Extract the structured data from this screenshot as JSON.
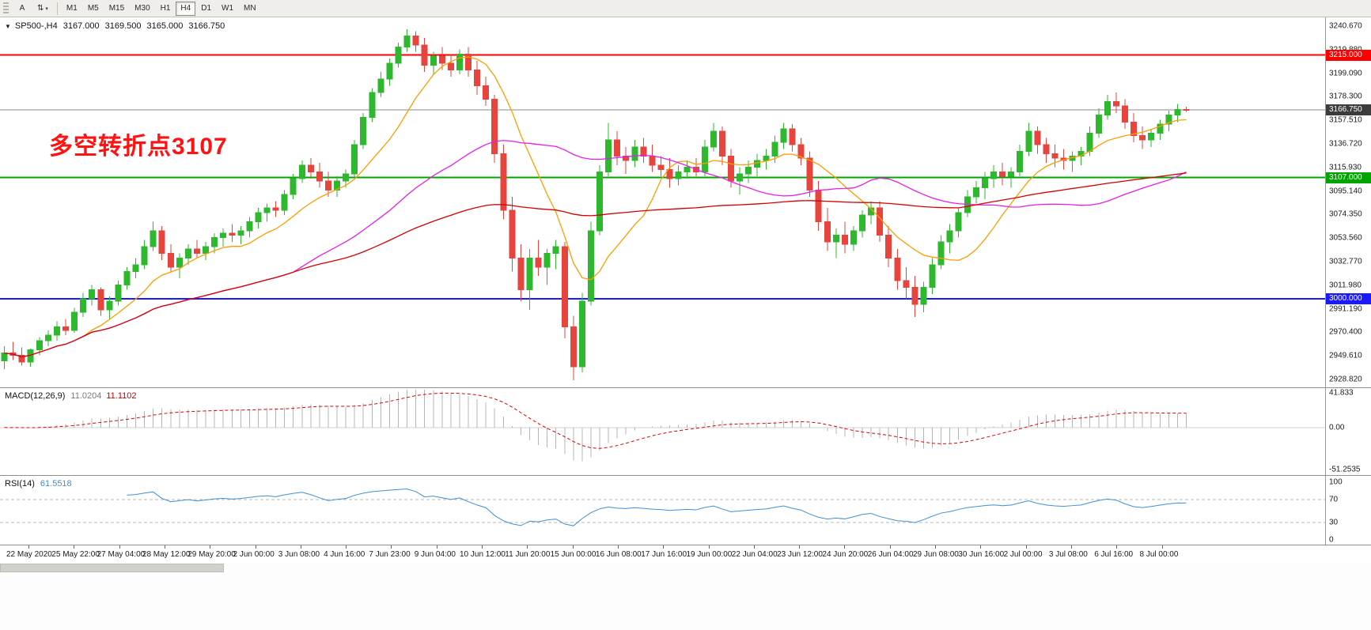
{
  "toolbar": {
    "tools": [
      {
        "name": "text-tool",
        "label": "A"
      },
      {
        "name": "arrows-tool",
        "label": "⇅"
      }
    ],
    "dropdown_caret": "▾",
    "timeframes": [
      "M1",
      "M5",
      "M15",
      "M30",
      "H1",
      "H4",
      "D1",
      "W1",
      "MN"
    ],
    "active_timeframe": "H4"
  },
  "chart_data": {
    "type": "candlestick",
    "symbol": "SP500-",
    "timeframe": "H4",
    "title_symbol": "SP500-,H4",
    "ohlc": {
      "open": "3167.000",
      "high": "3169.500",
      "low": "3165.000",
      "close": "3166.750"
    },
    "colors": {
      "up": "#2eb82e",
      "down": "#e6443c",
      "background": "#ffffff"
    },
    "annotation": {
      "text": "多空转折点3107",
      "color": "#ff1212"
    },
    "price_axis": {
      "ylim": [
        2921.8,
        3248.3
      ],
      "labels": [
        "3240.670",
        "3219.880",
        "3199.090",
        "3178.300",
        "3157.510",
        "3136.720",
        "3115.930",
        "3095.140",
        "3074.350",
        "3053.560",
        "3032.770",
        "3011.980",
        "2991.190",
        "2970.400",
        "2949.610",
        "2928.820"
      ]
    },
    "hlines": [
      {
        "value": 3215.0,
        "label": "3215.000",
        "color": "#ff0000",
        "width": 2
      },
      {
        "value": 3107.0,
        "label": "3107.000",
        "color": "#00a500",
        "width": 2
      },
      {
        "value": 3000.0,
        "label": "3000.000",
        "color": "#1a1aff",
        "width": 2
      },
      {
        "value": 3166.75,
        "label": "3166.750",
        "color": "#8a8a8a",
        "width": 1,
        "badge_color": "#3c3c3c",
        "role": "current-price"
      }
    ],
    "moving_averages": [
      {
        "name": "ma-fast",
        "period": 10,
        "color": "#ff9d00"
      },
      {
        "name": "ma-mid",
        "period": 34,
        "color": "#e81ee8"
      },
      {
        "name": "ma-slow",
        "period": 110,
        "color": "#d40000"
      }
    ],
    "time_labels": [
      "22 May 2020",
      "25 May 22:00",
      "27 May 04:00",
      "28 May 12:00",
      "29 May 20:00",
      "2 Jun 00:00",
      "3 Jun 08:00",
      "4 Jun 16:00",
      "7 Jun 23:00",
      "9 Jun 04:00",
      "10 Jun 12:00",
      "11 Jun 20:00",
      "15 Jun 00:00",
      "16 Jun 08:00",
      "17 Jun 16:00",
      "19 Jun 00:00",
      "22 Jun 04:00",
      "23 Jun 12:00",
      "24 Jun 20:00",
      "26 Jun 04:00",
      "29 Jun 08:00",
      "30 Jun 16:00",
      "2 Jul 00:00",
      "3 Jul 08:00",
      "6 Jul 16:00",
      "8 Jul 00:00"
    ],
    "candles": [
      [
        2945,
        2958,
        2938,
        2952
      ],
      [
        2952,
        2962,
        2946,
        2950
      ],
      [
        2950,
        2957,
        2941,
        2944
      ],
      [
        2944,
        2956,
        2940,
        2955
      ],
      [
        2955,
        2966,
        2950,
        2963
      ],
      [
        2963,
        2972,
        2958,
        2968
      ],
      [
        2968,
        2980,
        2963,
        2975
      ],
      [
        2975,
        2982,
        2968,
        2972
      ],
      [
        2972,
        2992,
        2970,
        2988
      ],
      [
        2988,
        3005,
        2984,
        3000
      ],
      [
        3000,
        3012,
        2994,
        3008
      ],
      [
        3008,
        3010,
        2985,
        2990
      ],
      [
        2990,
        3002,
        2982,
        2998
      ],
      [
        2998,
        3016,
        2994,
        3012
      ],
      [
        3012,
        3028,
        3008,
        3024
      ],
      [
        3024,
        3036,
        3018,
        3030
      ],
      [
        3030,
        3052,
        3026,
        3046
      ],
      [
        3046,
        3068,
        3042,
        3060
      ],
      [
        3060,
        3064,
        3034,
        3040
      ],
      [
        3040,
        3048,
        3024,
        3028
      ],
      [
        3028,
        3040,
        3018,
        3036
      ],
      [
        3036,
        3048,
        3030,
        3044
      ],
      [
        3044,
        3052,
        3036,
        3040
      ],
      [
        3040,
        3050,
        3034,
        3046
      ],
      [
        3046,
        3058,
        3040,
        3054
      ],
      [
        3054,
        3062,
        3046,
        3058
      ],
      [
        3058,
        3066,
        3050,
        3056
      ],
      [
        3056,
        3064,
        3048,
        3060
      ],
      [
        3060,
        3072,
        3054,
        3068
      ],
      [
        3068,
        3080,
        3062,
        3076
      ],
      [
        3076,
        3084,
        3068,
        3080
      ],
      [
        3080,
        3086,
        3072,
        3078
      ],
      [
        3078,
        3096,
        3074,
        3092
      ],
      [
        3092,
        3110,
        3088,
        3106
      ],
      [
        3106,
        3122,
        3102,
        3118
      ],
      [
        3118,
        3124,
        3106,
        3112
      ],
      [
        3112,
        3120,
        3098,
        3104
      ],
      [
        3104,
        3112,
        3090,
        3096
      ],
      [
        3096,
        3108,
        3090,
        3104
      ],
      [
        3104,
        3114,
        3098,
        3110
      ],
      [
        3110,
        3140,
        3106,
        3136
      ],
      [
        3136,
        3164,
        3132,
        3160
      ],
      [
        3160,
        3186,
        3156,
        3182
      ],
      [
        3182,
        3200,
        3178,
        3194
      ],
      [
        3194,
        3212,
        3188,
        3208
      ],
      [
        3208,
        3226,
        3204,
        3222
      ],
      [
        3222,
        3238,
        3218,
        3232
      ],
      [
        3232,
        3236,
        3218,
        3224
      ],
      [
        3224,
        3230,
        3200,
        3206
      ],
      [
        3206,
        3218,
        3198,
        3214
      ],
      [
        3214,
        3222,
        3202,
        3208
      ],
      [
        3208,
        3216,
        3196,
        3202
      ],
      [
        3202,
        3220,
        3198,
        3216
      ],
      [
        3216,
        3222,
        3196,
        3202
      ],
      [
        3202,
        3210,
        3180,
        3188
      ],
      [
        3188,
        3196,
        3170,
        3176
      ],
      [
        3176,
        3180,
        3120,
        3128
      ],
      [
        3128,
        3136,
        3070,
        3078
      ],
      [
        3078,
        3090,
        3024,
        3036
      ],
      [
        3036,
        3048,
        2998,
        3008
      ],
      [
        3008,
        3044,
        2990,
        3036
      ],
      [
        3036,
        3052,
        3020,
        3028
      ],
      [
        3028,
        3044,
        3012,
        3040
      ],
      [
        3040,
        3052,
        3026,
        3046
      ],
      [
        3046,
        3050,
        2965,
        2975
      ],
      [
        2975,
        2985,
        2928,
        2940
      ],
      [
        2940,
        3005,
        2935,
        2998
      ],
      [
        2998,
        3068,
        2994,
        3060
      ],
      [
        3060,
        3118,
        3056,
        3112
      ],
      [
        3112,
        3155,
        3108,
        3140
      ],
      [
        3140,
        3148,
        3118,
        3126
      ],
      [
        3126,
        3134,
        3110,
        3122
      ],
      [
        3122,
        3140,
        3116,
        3134
      ],
      [
        3134,
        3142,
        3120,
        3126
      ],
      [
        3126,
        3136,
        3112,
        3118
      ],
      [
        3118,
        3126,
        3108,
        3114
      ],
      [
        3114,
        3124,
        3098,
        3106
      ],
      [
        3106,
        3118,
        3100,
        3112
      ],
      [
        3112,
        3122,
        3106,
        3116
      ],
      [
        3116,
        3124,
        3108,
        3112
      ],
      [
        3112,
        3140,
        3108,
        3134
      ],
      [
        3134,
        3155,
        3130,
        3148
      ],
      [
        3148,
        3152,
        3118,
        3126
      ],
      [
        3126,
        3132,
        3098,
        3104
      ],
      [
        3104,
        3116,
        3092,
        3110
      ],
      [
        3110,
        3122,
        3102,
        3116
      ],
      [
        3116,
        3128,
        3108,
        3122
      ],
      [
        3122,
        3132,
        3114,
        3126
      ],
      [
        3126,
        3144,
        3120,
        3138
      ],
      [
        3138,
        3155,
        3132,
        3150
      ],
      [
        3150,
        3154,
        3130,
        3136
      ],
      [
        3136,
        3142,
        3118,
        3124
      ],
      [
        3124,
        3130,
        3090,
        3096
      ],
      [
        3096,
        3104,
        3060,
        3068
      ],
      [
        3068,
        3080,
        3042,
        3050
      ],
      [
        3050,
        3062,
        3036,
        3056
      ],
      [
        3056,
        3068,
        3040,
        3048
      ],
      [
        3048,
        3064,
        3042,
        3060
      ],
      [
        3060,
        3078,
        3054,
        3074
      ],
      [
        3074,
        3086,
        3066,
        3080
      ],
      [
        3080,
        3086,
        3050,
        3056
      ],
      [
        3056,
        3064,
        3028,
        3036
      ],
      [
        3036,
        3044,
        3008,
        3016
      ],
      [
        3016,
        3028,
        3000,
        3010
      ],
      [
        3010,
        3020,
        2984,
        2995
      ],
      [
        2995,
        3015,
        2988,
        3010
      ],
      [
        3010,
        3036,
        3004,
        3030
      ],
      [
        3030,
        3056,
        3026,
        3050
      ],
      [
        3050,
        3066,
        3040,
        3060
      ],
      [
        3060,
        3080,
        3054,
        3076
      ],
      [
        3076,
        3096,
        3072,
        3090
      ],
      [
        3090,
        3104,
        3084,
        3098
      ],
      [
        3098,
        3112,
        3088,
        3106
      ],
      [
        3106,
        3118,
        3098,
        3112
      ],
      [
        3112,
        3120,
        3100,
        3108
      ],
      [
        3108,
        3116,
        3098,
        3112
      ],
      [
        3112,
        3136,
        3108,
        3130
      ],
      [
        3130,
        3155,
        3126,
        3148
      ],
      [
        3148,
        3152,
        3128,
        3136
      ],
      [
        3136,
        3142,
        3120,
        3128
      ],
      [
        3128,
        3136,
        3116,
        3124
      ],
      [
        3124,
        3132,
        3114,
        3122
      ],
      [
        3122,
        3130,
        3112,
        3126
      ],
      [
        3126,
        3134,
        3118,
        3130
      ],
      [
        3130,
        3152,
        3126,
        3146
      ],
      [
        3146,
        3168,
        3142,
        3162
      ],
      [
        3162,
        3180,
        3158,
        3174
      ],
      [
        3174,
        3182,
        3164,
        3170
      ],
      [
        3170,
        3176,
        3150,
        3156
      ],
      [
        3156,
        3164,
        3138,
        3144
      ],
      [
        3144,
        3152,
        3132,
        3140
      ],
      [
        3140,
        3150,
        3134,
        3146
      ],
      [
        3146,
        3158,
        3140,
        3154
      ],
      [
        3154,
        3166,
        3148,
        3162
      ],
      [
        3162,
        3172,
        3156,
        3167
      ],
      [
        3167,
        3169.5,
        3165,
        3166.75
      ]
    ],
    "indicators": {
      "macd": {
        "name": "MACD(12,26,9)",
        "value_main": "11.0204",
        "value_signal": "11.1102",
        "fast": 12,
        "slow": 26,
        "signal": 9,
        "ylim": [
          -58,
          48
        ],
        "axis_labels": [
          {
            "text": "41.833",
            "value": 41.833
          },
          {
            "text": "0.00",
            "value": 0
          },
          {
            "text": "-51.2535",
            "value": -51.2535
          }
        ],
        "histogram_color": "#b4b4b4",
        "signal_color": "#e00000",
        "zero_line_color": "#d0d0d0"
      },
      "rsi": {
        "name": "RSI(14)",
        "value": "61.5518",
        "period": 14,
        "ylim": [
          -8,
          111
        ],
        "levels": [
          70,
          30
        ],
        "axis_labels": [
          {
            "text": "100",
            "value": 100
          },
          {
            "text": "70",
            "value": 70
          },
          {
            "text": "30",
            "value": 30
          },
          {
            "text": "0",
            "value": 0
          }
        ],
        "line_color": "#3f8fd4",
        "level_color": "#b8b8b8"
      }
    }
  }
}
